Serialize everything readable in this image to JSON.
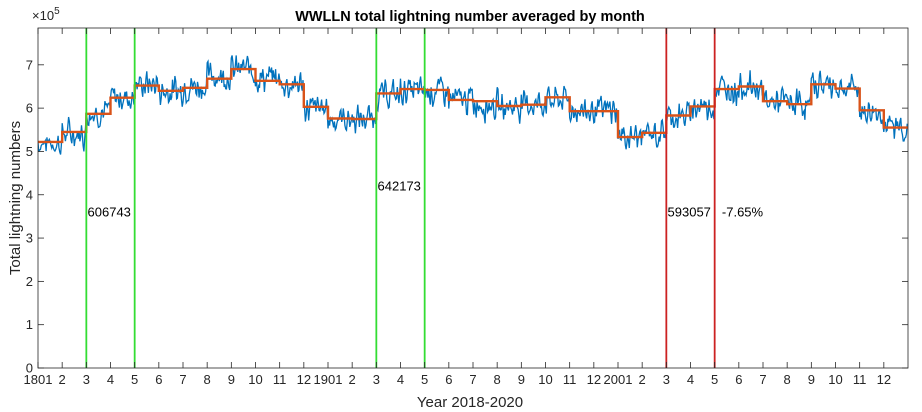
{
  "chart_data": {
    "type": "line",
    "title": "WWLLN total lightning number averaged by month",
    "xlabel": "Year 2018-2020",
    "ylabel": "Total lightning numbers",
    "y_exponent_label": "×10",
    "y_exponent_power": "5",
    "ylim": [
      0,
      7.85
    ],
    "xlim": [
      0,
      36
    ],
    "y_ticks": [
      "0",
      "1",
      "2",
      "3",
      "4",
      "5",
      "6",
      "7"
    ],
    "x_ticks": [
      "1801",
      "2",
      "3",
      "4",
      "5",
      "6",
      "7",
      "8",
      "9",
      "10",
      "11",
      "12",
      "1901",
      "2",
      "3",
      "4",
      "5",
      "6",
      "7",
      "8",
      "9",
      "10",
      "11",
      "12",
      "2001",
      "2",
      "3",
      "4",
      "5",
      "6",
      "7",
      "8",
      "9",
      "10",
      "11",
      "12"
    ],
    "grid": false,
    "colors": {
      "daily": "#0072BD",
      "monthly": "#D95319",
      "green_line": "#33dd33",
      "red_line": "#cc2222",
      "axes": "#262626"
    },
    "series": [
      {
        "name": "",
        "kind": "daily",
        "seed": 7,
        "monthly_base": [
          5.2,
          5.4,
          5.9,
          6.25,
          6.55,
          6.4,
          6.5,
          6.75,
          6.9,
          6.7,
          6.55,
          6.0,
          5.75,
          5.75,
          6.3,
          6.4,
          6.4,
          6.2,
          6.1,
          6.05,
          6.1,
          6.2,
          5.95,
          5.95,
          5.35,
          5.4,
          5.8,
          6.05,
          6.45,
          6.5,
          6.15,
          6.1,
          6.55,
          6.45,
          5.9,
          5.55
        ],
        "noise": 0.38
      },
      {
        "name": "",
        "kind": "monthly",
        "values": [
          5.22,
          5.45,
          5.87,
          6.24,
          6.52,
          6.4,
          6.47,
          6.68,
          6.9,
          6.63,
          6.55,
          6.03,
          5.76,
          5.75,
          6.34,
          6.44,
          6.42,
          6.19,
          6.16,
          6.05,
          6.08,
          6.25,
          5.93,
          5.93,
          5.33,
          5.43,
          5.83,
          6.04,
          6.44,
          6.5,
          6.16,
          6.09,
          6.55,
          6.45,
          5.95,
          5.55
        ]
      }
    ],
    "vertical_lines": [
      {
        "x": 2,
        "color": "green"
      },
      {
        "x": 4,
        "color": "green"
      },
      {
        "x": 14,
        "color": "green"
      },
      {
        "x": 16,
        "color": "green"
      },
      {
        "x": 26,
        "color": "red"
      },
      {
        "x": 28,
        "color": "red"
      }
    ],
    "annotations": [
      {
        "text": "606743",
        "x": 2.05,
        "y": 3.5
      },
      {
        "text": "642173",
        "x": 14.05,
        "y": 4.1
      },
      {
        "text": "593057",
        "x": 26.05,
        "y": 3.5
      },
      {
        "text": "-7.65%",
        "x": 28.3,
        "y": 3.5
      }
    ]
  }
}
